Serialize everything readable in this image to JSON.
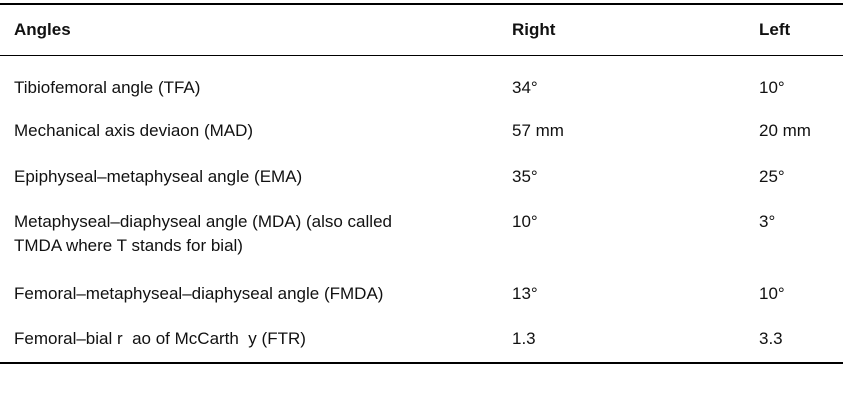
{
  "table": {
    "headers": [
      "Angles",
      "Right",
      "Left"
    ],
    "rows": [
      {
        "angle": "Tibiofemoral angle (TFA)",
        "right": "34°",
        "left": "10°"
      },
      {
        "angle": "Mechanical axis deviaon (MAD)",
        "right": "57 mm",
        "left": "20 mm"
      },
      {
        "angle": "Epiphyseal–metaphyseal angle (EMA)",
        "right": "35°",
        "left": "25°"
      },
      {
        "angle_line1": "Metaphyseal–diaphyseal angle (MDA) (also called",
        "angle_line2": "TMDA where T stands for bial)",
        "right": "10°",
        "left": "3°"
      },
      {
        "angle": "Femoral–metaphyseal–diaphyseal angle (FMDA)",
        "right": "13°",
        "left": "10°"
      },
      {
        "angle": "Femoral–bial r  ao of McCarth  y (FTR)",
        "right": "1.3",
        "left": "3.3"
      }
    ]
  }
}
